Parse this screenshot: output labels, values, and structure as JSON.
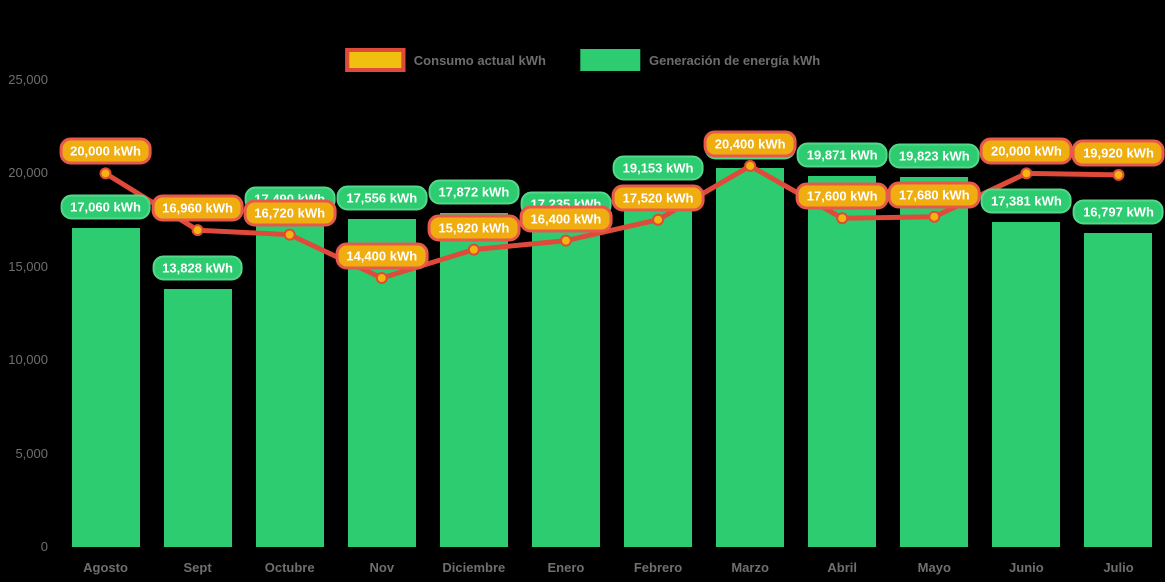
{
  "chart_data": {
    "type": "bar",
    "subtype": "bar-with-line-overlay",
    "categories": [
      "Agosto",
      "Sept",
      "Octubre",
      "Nov",
      "Diciembre",
      "Enero",
      "Febrero",
      "Marzo",
      "Abril",
      "Mayo",
      "Junio",
      "Julio"
    ],
    "series": [
      {
        "name": "Generación de energía kWh",
        "type": "bar",
        "color": "#2ecc71",
        "values": [
          17060,
          13828,
          17490,
          17556,
          17872,
          17235,
          19153,
          20300,
          19871,
          19823,
          17381,
          16797
        ],
        "label_style": "green-pill",
        "hidden_label_indexes": [
          7
        ],
        "note": "Marzo (index 7) data label is covered by the consumption label; value estimated from bar height"
      },
      {
        "name": "Consumo actual kWh",
        "type": "line",
        "color": "#df4a3a",
        "marker_fill": "#f3b40f",
        "values": [
          20000,
          16960,
          16720,
          14400,
          15920,
          16400,
          17520,
          20400,
          17600,
          17680,
          20000,
          19920
        ],
        "label_style": "orange-pill"
      }
    ],
    "value_suffix": " kWh",
    "title": "",
    "xlabel": "",
    "ylabel": "",
    "ylim": [
      0,
      25000
    ],
    "yticks": [
      0,
      5000,
      10000,
      15000,
      20000,
      25000
    ],
    "ytick_labels": [
      "0",
      "5,000",
      "10,000",
      "15,000",
      "20,000",
      "25,000"
    ],
    "grid": false,
    "legend_position": "top-center",
    "background": "#000000"
  },
  "legend": {
    "consumption_label": "Consumo actual kWh",
    "generation_label": "Generación de energía kWh"
  },
  "colors": {
    "bar_green": "#2ecc71",
    "green_pill_border": "#55d78a",
    "orange_pill_fill": "#f0ad10",
    "orange_pill_border": "#e7594b",
    "line_red": "#df4a3a",
    "marker_yellow": "#f3b40f",
    "axis_text": "#6f6f6f",
    "background": "#000000"
  }
}
